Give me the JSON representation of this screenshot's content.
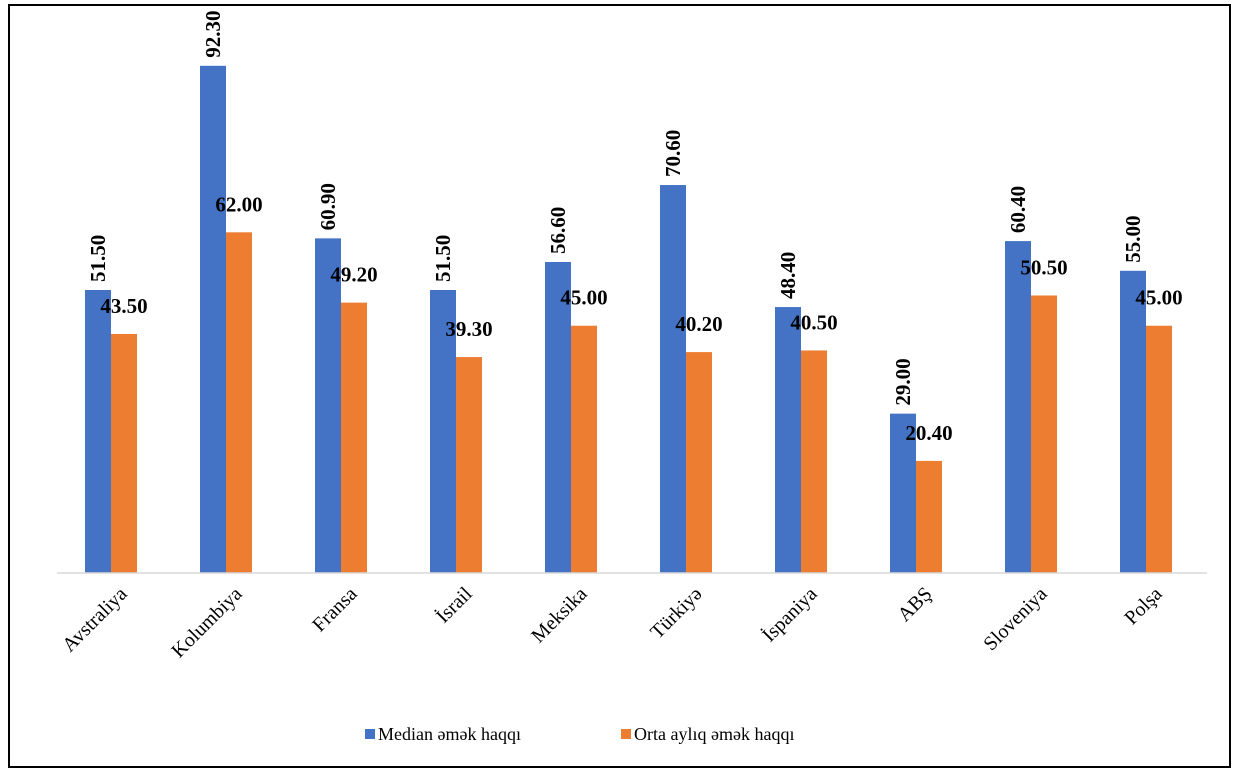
{
  "chart_data": {
    "type": "bar",
    "title": "",
    "xlabel": "",
    "ylabel": "",
    "categories": [
      "Avstraliya",
      "Kolumbiya",
      "Fransa",
      "İsrail",
      "Meksika",
      "Türkiyə",
      "İspaniya",
      "ABŞ",
      "Sloveniya",
      "Polşa"
    ],
    "series": [
      {
        "name": "Median əmək haqqı",
        "color": "#4472C4",
        "values": [
          51.5,
          92.3,
          60.9,
          51.5,
          56.6,
          70.6,
          48.4,
          29.0,
          60.4,
          55.0
        ],
        "labels": [
          "51.50",
          "92.30",
          "60.90",
          "51.50",
          "56.60",
          "70.60",
          "48.40",
          "29.00",
          "60.40",
          "55.00"
        ],
        "label_orientation": "vertical"
      },
      {
        "name": "Orta aylıq əmək haqqı",
        "color": "#ED7D31",
        "values": [
          43.5,
          62.0,
          49.2,
          39.3,
          45.0,
          40.2,
          40.5,
          20.4,
          50.5,
          45.0
        ],
        "labels": [
          "43.50",
          "62.00",
          "49.20",
          "39.30",
          "45.00",
          "40.20",
          "40.50",
          "20.40",
          "50.50",
          "45.00"
        ],
        "label_orientation": "horizontal"
      }
    ],
    "ylim": [
      0,
      100
    ],
    "grid": false,
    "legend_position": "bottom"
  }
}
